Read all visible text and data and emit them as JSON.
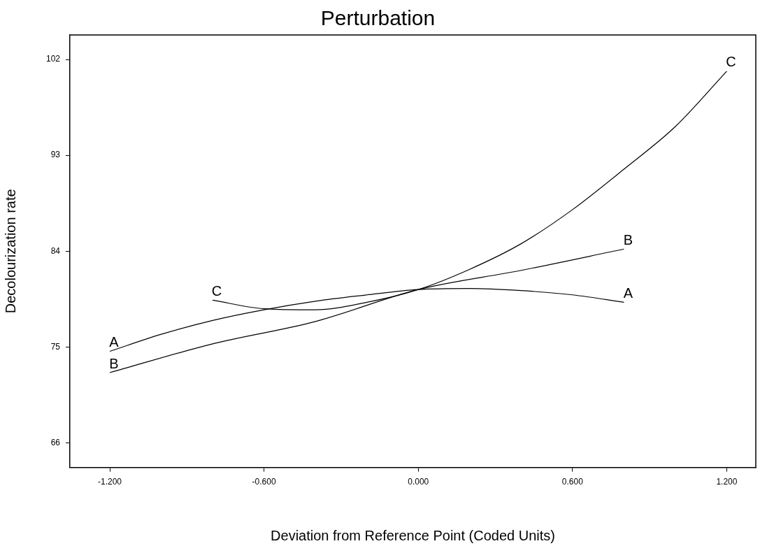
{
  "chart_data": {
    "type": "line",
    "title": "Perturbation",
    "xlabel": "Deviation from Reference Point (Coded Units)",
    "ylabel": "Decolourization rate",
    "series": [
      {
        "name": "A",
        "color": "#000000",
        "x": [
          -1.2,
          -1.0,
          -0.8,
          -0.6,
          -0.4,
          -0.2,
          0,
          0.2,
          0.4,
          0.6,
          0.8
        ],
        "values": [
          74.6,
          76.2,
          77.5,
          78.5,
          79.3,
          79.9,
          80.4,
          80.5,
          80.3,
          79.9,
          79.2
        ]
      },
      {
        "name": "B",
        "color": "#000000",
        "x": [
          -1.2,
          -0.8,
          -0.4,
          0,
          0.4,
          0.8
        ],
        "values": [
          72.6,
          75.3,
          77.4,
          80.4,
          82.2,
          84.2
        ]
      },
      {
        "name": "C",
        "color": "#000000",
        "x": [
          -0.8,
          -0.6,
          -0.4,
          -0.2,
          0,
          0.2,
          0.4,
          0.6,
          0.8,
          1.0,
          1.2
        ],
        "values": [
          79.4,
          78.6,
          78.5,
          79.2,
          80.4,
          82.3,
          84.7,
          87.9,
          91.7,
          95.7,
          100.9
        ]
      }
    ],
    "xlim": [
      -1.355,
      1.313
    ],
    "ylim": [
      63.7,
      104.3
    ],
    "xticks": [
      {
        "value": -1.2,
        "label": "-1.200"
      },
      {
        "value": -0.6,
        "label": "-0.600"
      },
      {
        "value": 0,
        "label": "0.000"
      },
      {
        "value": 0.6,
        "label": "0.600"
      },
      {
        "value": 1.2,
        "label": "1.200"
      }
    ],
    "yticks": [
      66,
      75,
      84,
      93,
      102
    ],
    "grid": false,
    "legend": false,
    "marker": "none",
    "line_style": "solid"
  }
}
